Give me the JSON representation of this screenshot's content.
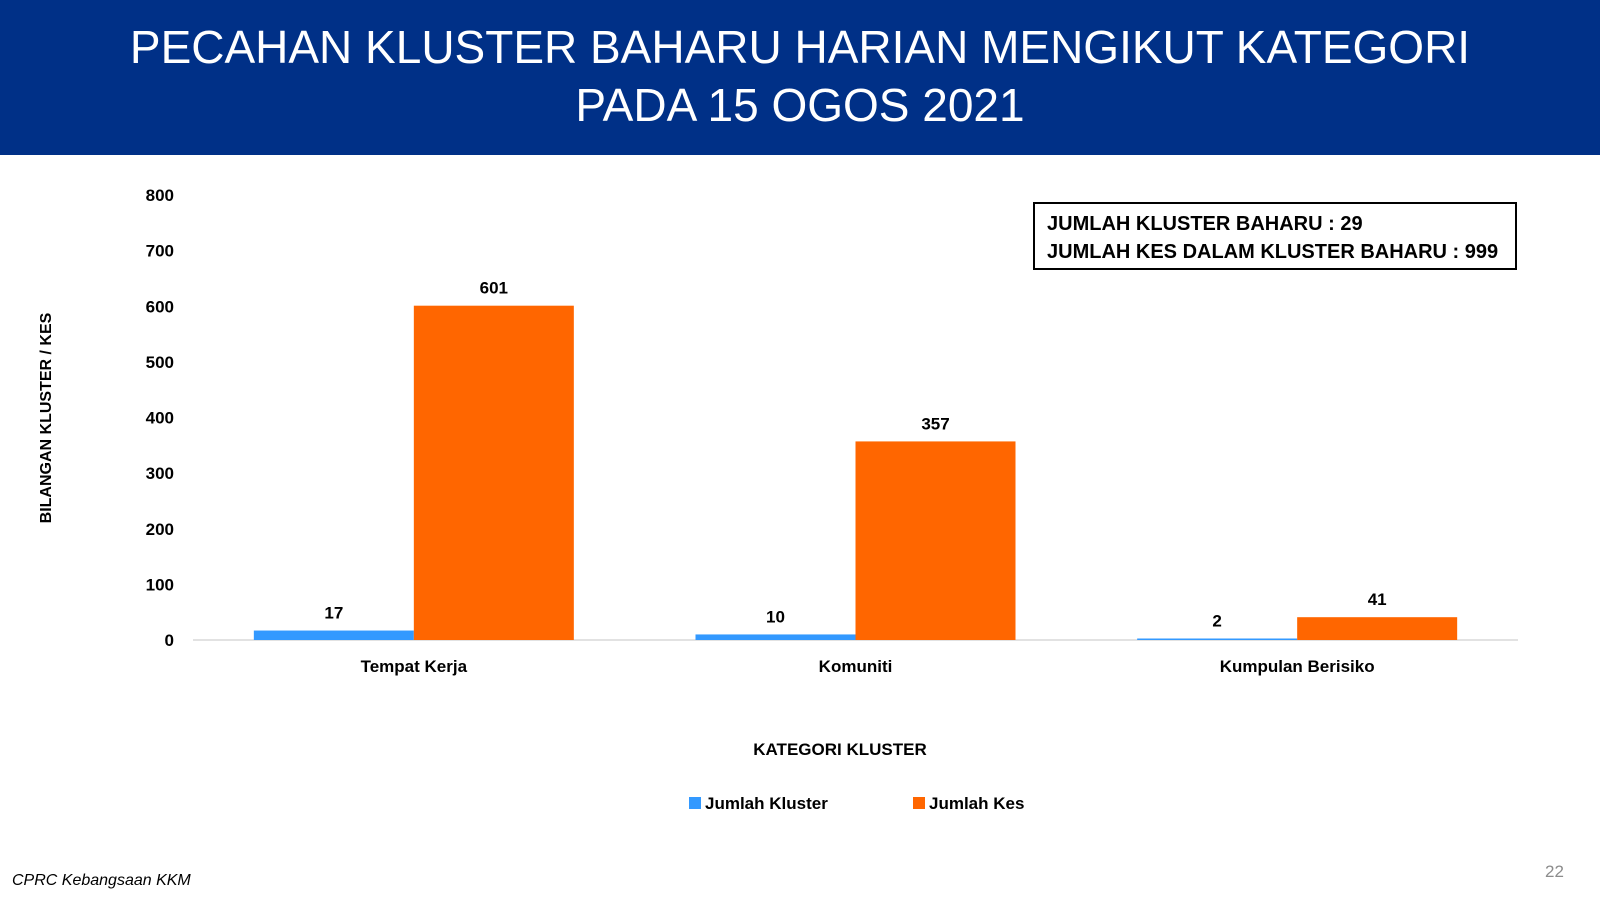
{
  "header": {
    "title_line1": "PECAHAN KLUSTER BAHARU HARIAN MENGIKUT KATEGORI",
    "title_line2": "PADA 15 OGOS 2021",
    "background_color": "#003087"
  },
  "summary": {
    "line1": "JUMLAH KLUSTER BAHARU : 29",
    "line2": "JUMLAH KES DALAM KLUSTER BAHARU : 999"
  },
  "chart_data": {
    "type": "bar",
    "categories": [
      "Tempat Kerja",
      "Komuniti",
      "Kumpulan Berisiko"
    ],
    "series": [
      {
        "name": "Jumlah Kluster",
        "values": [
          17,
          10,
          2
        ],
        "color": "#3399ff"
      },
      {
        "name": "Jumlah Kes",
        "values": [
          601,
          357,
          41
        ],
        "color": "#ff6600"
      }
    ],
    "xlabel": "KATEGORI KLUSTER",
    "ylabel": "BILANGAN KLUSTER / KES",
    "ylim": [
      0,
      800
    ],
    "yticks": [
      "0",
      "100",
      "200",
      "300",
      "400",
      "500",
      "600",
      "700",
      "800"
    ],
    "grid": false,
    "legend_position": "bottom",
    "data_labels": true
  },
  "footer": {
    "source": "CPRC Kebangsaan KKM",
    "page_number": "22"
  }
}
